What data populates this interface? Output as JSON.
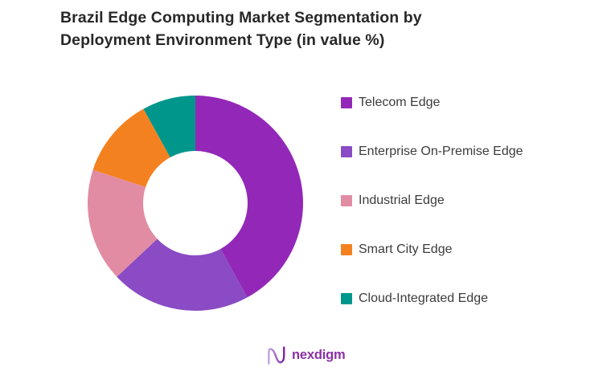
{
  "header": {
    "title_line1": "Brazil Edge Computing Market Segmentation by",
    "title_line2": "Deployment Environment Type (in value %)"
  },
  "chart_data": {
    "type": "pie",
    "subtype": "donut",
    "title": "Brazil Edge Computing Market Segmentation by Deployment Environment Type (in value %)",
    "values_unit": "%",
    "start_angle_deg": 0,
    "direction": "clockwise",
    "inner_radius_ratio": 0.485,
    "legend_position": "right",
    "series": [
      {
        "name": "Telecom Edge",
        "value": 42,
        "color": "#9328b8"
      },
      {
        "name": "Enterprise On-Premise Edge",
        "value": 21,
        "color": "#8a4bc4"
      },
      {
        "name": "Industrial Edge",
        "value": 17,
        "color": "#e28ca4"
      },
      {
        "name": "Smart City Edge",
        "value": 12,
        "color": "#f48120"
      },
      {
        "name": "Cloud-Integrated Edge",
        "value": 8,
        "color": "#00968b"
      }
    ]
  },
  "footer": {
    "logo_text": "nexdigm",
    "logo_text_color": "#8b2fa8",
    "logo_mark_gradient_start": "#c4a3e6",
    "logo_mark_gradient_end": "#7b22a8"
  },
  "colors": {
    "background": "#ffffff",
    "title_text": "#282828",
    "legend_text": "#3c3c3c"
  }
}
